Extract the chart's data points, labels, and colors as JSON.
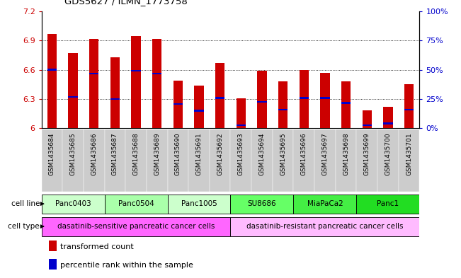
{
  "title": "GDS5627 / ILMN_1773758",
  "samples": [
    "GSM1435684",
    "GSM1435685",
    "GSM1435686",
    "GSM1435687",
    "GSM1435688",
    "GSM1435689",
    "GSM1435690",
    "GSM1435691",
    "GSM1435692",
    "GSM1435693",
    "GSM1435694",
    "GSM1435695",
    "GSM1435696",
    "GSM1435697",
    "GSM1435698",
    "GSM1435699",
    "GSM1435700",
    "GSM1435701"
  ],
  "bar_values": [
    6.97,
    6.77,
    6.92,
    6.73,
    6.95,
    6.92,
    6.49,
    6.44,
    6.67,
    6.31,
    6.59,
    6.48,
    6.6,
    6.57,
    6.48,
    6.18,
    6.22,
    6.45
  ],
  "percentile_values": [
    6.6,
    6.32,
    6.56,
    6.3,
    6.59,
    6.56,
    6.25,
    6.18,
    6.31,
    6.03,
    6.27,
    6.19,
    6.31,
    6.31,
    6.26,
    6.03,
    6.05,
    6.19
  ],
  "ymin": 6.0,
  "ymax": 7.2,
  "yticks": [
    6.0,
    6.3,
    6.6,
    6.9,
    7.2
  ],
  "ytick_labels": [
    "6",
    "6.3",
    "6.6",
    "6.9",
    "7.2"
  ],
  "right_yticks_pct": [
    0,
    25,
    50,
    75,
    100
  ],
  "right_ytick_labels": [
    "0%",
    "25%",
    "50%",
    "75%",
    "100%"
  ],
  "bar_color": "#cc0000",
  "percentile_color": "#0000cc",
  "cell_lines": [
    {
      "label": "Panc0403",
      "start": 0,
      "end": 2,
      "color": "#ccffcc"
    },
    {
      "label": "Panc0504",
      "start": 3,
      "end": 5,
      "color": "#aaffaa"
    },
    {
      "label": "Panc1005",
      "start": 6,
      "end": 8,
      "color": "#ccffcc"
    },
    {
      "label": "SU8686",
      "start": 9,
      "end": 11,
      "color": "#66ff66"
    },
    {
      "label": "MiaPaCa2",
      "start": 12,
      "end": 14,
      "color": "#44ee44"
    },
    {
      "label": "Panc1",
      "start": 15,
      "end": 17,
      "color": "#22dd22"
    }
  ],
  "cell_types": [
    {
      "label": "dasatinib-sensitive pancreatic cancer cells",
      "start": 0,
      "end": 8,
      "color": "#ff66ff"
    },
    {
      "label": "dasatinib-resistant pancreatic cancer cells",
      "start": 9,
      "end": 17,
      "color": "#ffbbff"
    }
  ],
  "legend_items": [
    {
      "label": "transformed count",
      "color": "#cc0000"
    },
    {
      "label": "percentile rank within the sample",
      "color": "#0000cc"
    }
  ],
  "xtick_bg_color": "#cccccc",
  "axis_label_color_left": "#cc0000",
  "axis_label_color_right": "#0000cc"
}
